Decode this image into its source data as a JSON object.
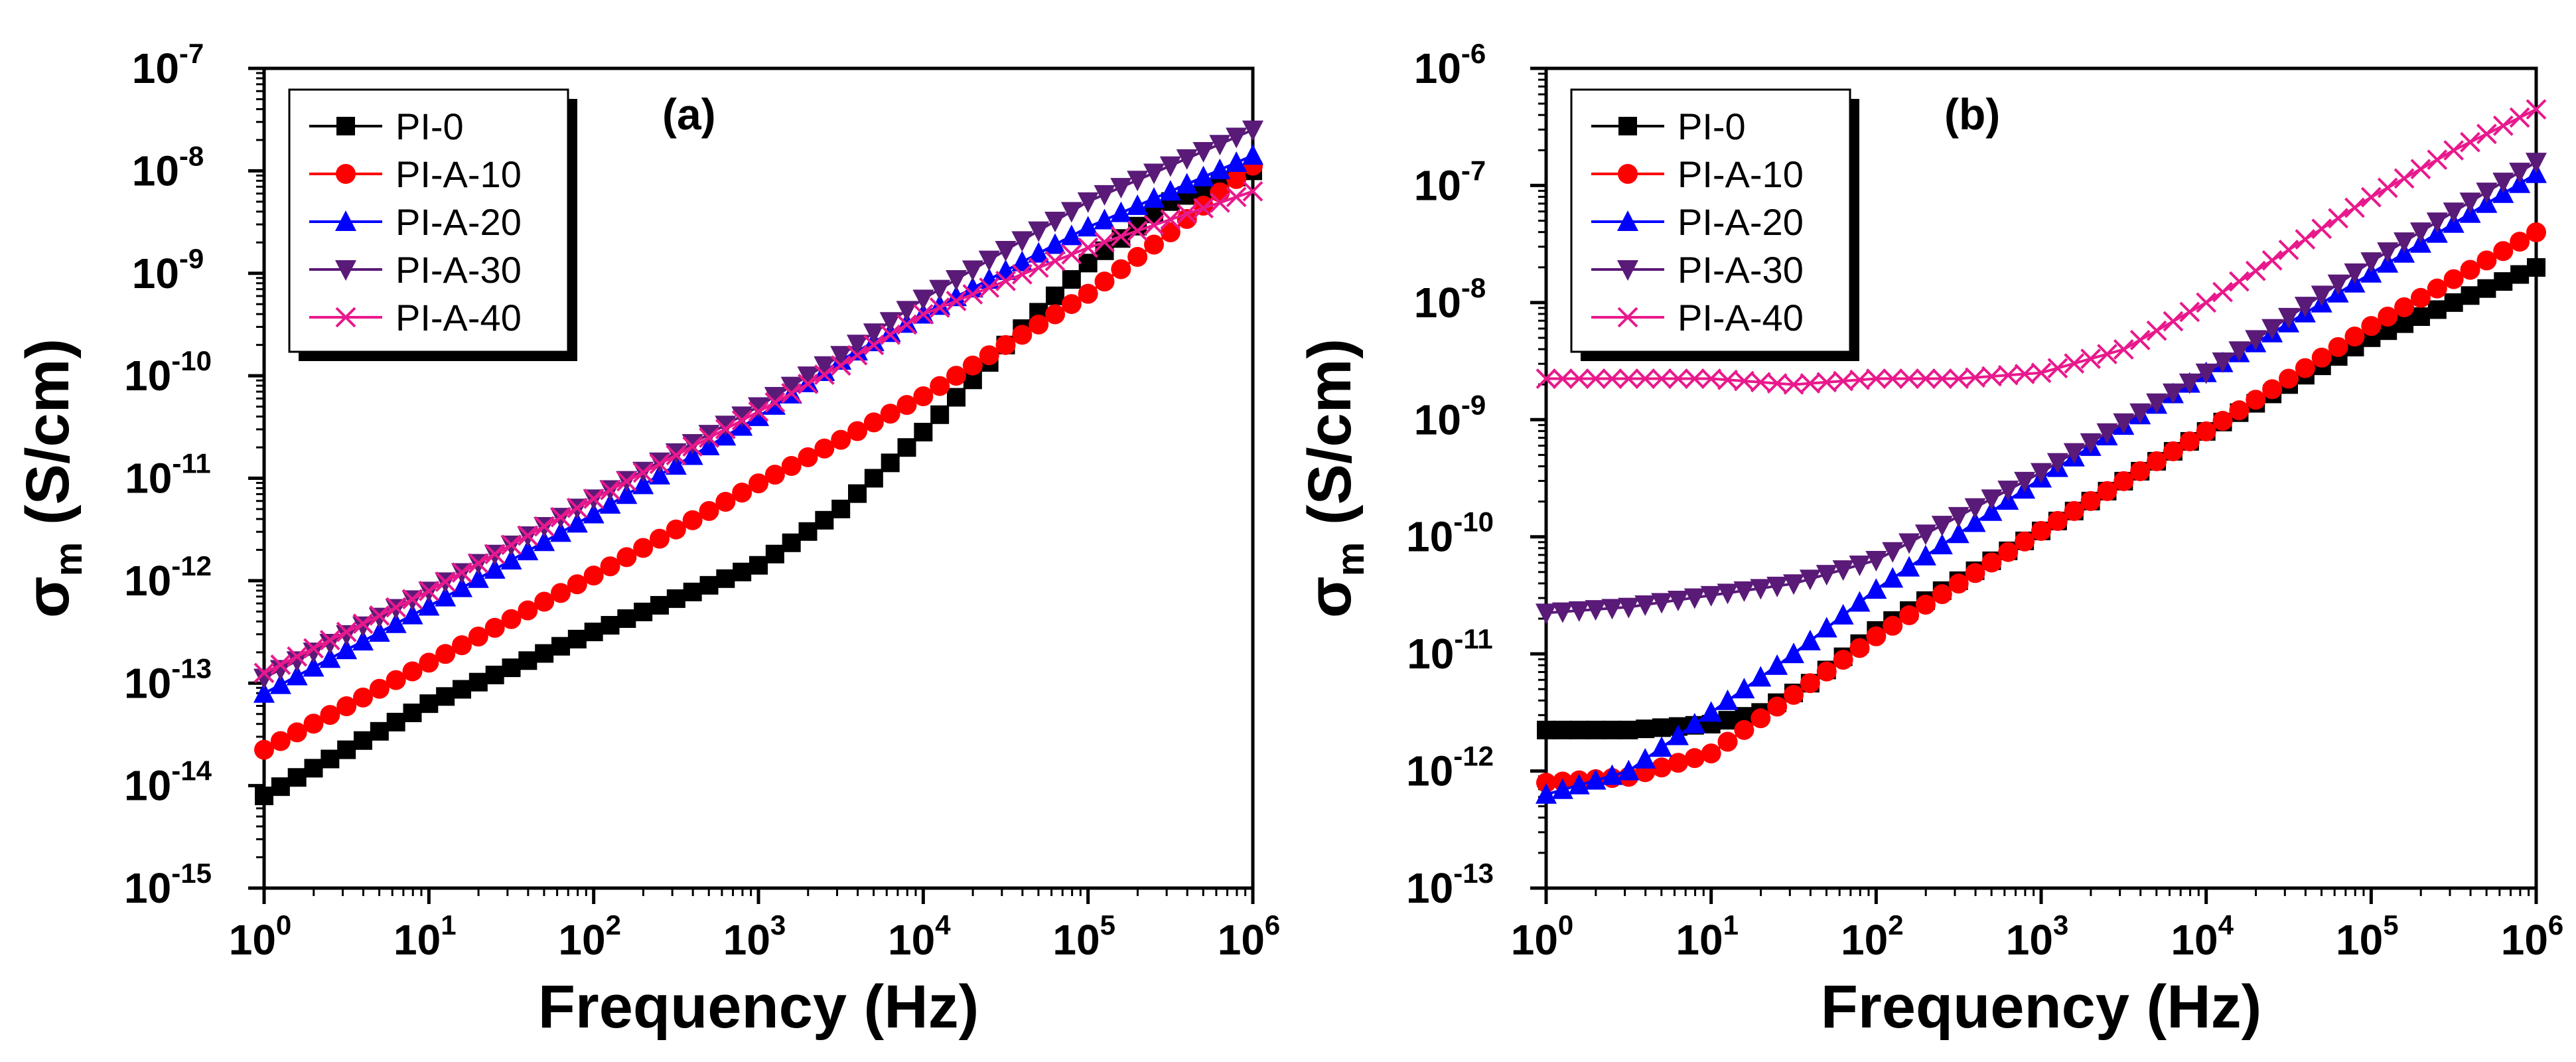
{
  "chart_data": [
    {
      "type": "line",
      "panel_label": "(a)",
      "xlabel": "Frequency (Hz)",
      "ylabel_main": "σ",
      "ylabel_sub": "m",
      "ylabel_unit": "(S/cm)",
      "xscale": "log",
      "yscale": "log",
      "xlim_exp": [
        0,
        6
      ],
      "ylim_exp": [
        -15,
        -7
      ],
      "x_tick_exps": [
        "0",
        "1",
        "2",
        "3",
        "4",
        "5",
        "6"
      ],
      "y_tick_exps": [
        "-15",
        "-14",
        "-13",
        "-12",
        "-11",
        "-10",
        "-9",
        "-8",
        "-7"
      ],
      "tick_base": "10",
      "legend_position": "top-left",
      "series": [
        {
          "name": "PI-0",
          "color": "#000000",
          "marker": "square",
          "points": [
            [
              0,
              -14.1
            ],
            [
              1,
              -13.2
            ],
            [
              2,
              -12.5
            ],
            [
              3,
              -11.85
            ],
            [
              3.5,
              -11.3
            ],
            [
              4,
              -10.55
            ],
            [
              4.5,
              -9.7
            ],
            [
              5,
              -8.9
            ],
            [
              5.5,
              -8.3
            ],
            [
              6,
              -8.0
            ]
          ]
        },
        {
          "name": "PI-A-10",
          "color": "#ff0000",
          "marker": "circle",
          "points": [
            [
              0,
              -13.65
            ],
            [
              1,
              -12.8
            ],
            [
              2,
              -11.95
            ],
            [
              3,
              -11.05
            ],
            [
              4,
              -10.2
            ],
            [
              5,
              -9.2
            ],
            [
              5.5,
              -8.6
            ],
            [
              6,
              -7.95
            ]
          ]
        },
        {
          "name": "PI-A-20",
          "color": "#0000ff",
          "marker": "triangle-up",
          "points": [
            [
              0,
              -13.1
            ],
            [
              1,
              -12.25
            ],
            [
              2,
              -11.35
            ],
            [
              3,
              -10.4
            ],
            [
              3.5,
              -9.85
            ],
            [
              4,
              -9.4
            ],
            [
              5,
              -8.55
            ],
            [
              6,
              -7.85
            ]
          ]
        },
        {
          "name": "PI-A-30",
          "color": "#5a1a78",
          "marker": "triangle-down",
          "points": [
            [
              0,
              -12.95
            ],
            [
              1,
              -12.1
            ],
            [
              2,
              -11.2
            ],
            [
              3,
              -10.3
            ],
            [
              3.5,
              -9.8
            ],
            [
              4,
              -9.25
            ],
            [
              5,
              -8.3
            ],
            [
              6,
              -7.6
            ]
          ]
        },
        {
          "name": "PI-A-40",
          "color": "#e8198c",
          "marker": "x",
          "points": [
            [
              0,
              -12.9
            ],
            [
              1,
              -12.1
            ],
            [
              2,
              -11.2
            ],
            [
              3,
              -10.35
            ],
            [
              3.5,
              -9.9
            ],
            [
              4,
              -9.4
            ],
            [
              5,
              -8.75
            ],
            [
              6,
              -8.2
            ]
          ]
        }
      ]
    },
    {
      "type": "line",
      "panel_label": "(b)",
      "xlabel": "Frequency (Hz)",
      "ylabel_main": "σ",
      "ylabel_sub": "m",
      "ylabel_unit": "(S/cm)",
      "xscale": "log",
      "yscale": "log",
      "xlim_exp": [
        0,
        6
      ],
      "ylim_exp": [
        -13,
        -6
      ],
      "x_tick_exps": [
        "0",
        "1",
        "2",
        "3",
        "4",
        "5",
        "6"
      ],
      "y_tick_exps": [
        "-13",
        "-12",
        "-11",
        "-10",
        "-9",
        "-8",
        "-7",
        "-6"
      ],
      "tick_base": "10",
      "legend_position": "top-left",
      "series": [
        {
          "name": "PI-0",
          "color": "#000000",
          "marker": "square",
          "points": [
            [
              0,
              -11.65
            ],
            [
              0.5,
              -11.65
            ],
            [
              1,
              -11.6
            ],
            [
              1.3,
              -11.5
            ],
            [
              1.6,
              -11.25
            ],
            [
              2,
              -10.8
            ],
            [
              3,
              -9.95
            ],
            [
              4,
              -9.1
            ],
            [
              5,
              -8.3
            ],
            [
              6,
              -7.7
            ]
          ]
        },
        {
          "name": "PI-A-10",
          "color": "#ff0000",
          "marker": "circle",
          "points": [
            [
              0,
              -12.1
            ],
            [
              0.5,
              -12.05
            ],
            [
              1,
              -11.85
            ],
            [
              1.5,
              -11.35
            ],
            [
              2,
              -10.85
            ],
            [
              3,
              -9.95
            ],
            [
              4,
              -9.1
            ],
            [
              5,
              -8.2
            ],
            [
              6,
              -7.4
            ]
          ]
        },
        {
          "name": "PI-A-20",
          "color": "#0000ff",
          "marker": "triangle-up",
          "points": [
            [
              0,
              -12.2
            ],
            [
              0.5,
              -12.0
            ],
            [
              1,
              -11.5
            ],
            [
              1.5,
              -11.0
            ],
            [
              2,
              -10.45
            ],
            [
              3,
              -9.5
            ],
            [
              4,
              -8.6
            ],
            [
              5,
              -7.75
            ],
            [
              6,
              -6.9
            ]
          ]
        },
        {
          "name": "PI-A-30",
          "color": "#5a1a78",
          "marker": "triangle-down",
          "points": [
            [
              0,
              -10.65
            ],
            [
              0.5,
              -10.6
            ],
            [
              1,
              -10.5
            ],
            [
              1.5,
              -10.4
            ],
            [
              2,
              -10.2
            ],
            [
              3,
              -9.45
            ],
            [
              4,
              -8.6
            ],
            [
              5,
              -7.65
            ],
            [
              6,
              -6.8
            ]
          ]
        },
        {
          "name": "PI-A-40",
          "color": "#e8198c",
          "marker": "x",
          "points": [
            [
              0,
              -8.65
            ],
            [
              0.5,
              -8.65
            ],
            [
              1,
              -8.65
            ],
            [
              1.5,
              -8.7
            ],
            [
              2,
              -8.65
            ],
            [
              2.5,
              -8.65
            ],
            [
              3,
              -8.6
            ],
            [
              3.5,
              -8.4
            ],
            [
              4,
              -8.0
            ],
            [
              4.5,
              -7.55
            ],
            [
              5,
              -7.1
            ],
            [
              5.5,
              -6.7
            ],
            [
              6,
              -6.35
            ]
          ]
        }
      ]
    }
  ]
}
